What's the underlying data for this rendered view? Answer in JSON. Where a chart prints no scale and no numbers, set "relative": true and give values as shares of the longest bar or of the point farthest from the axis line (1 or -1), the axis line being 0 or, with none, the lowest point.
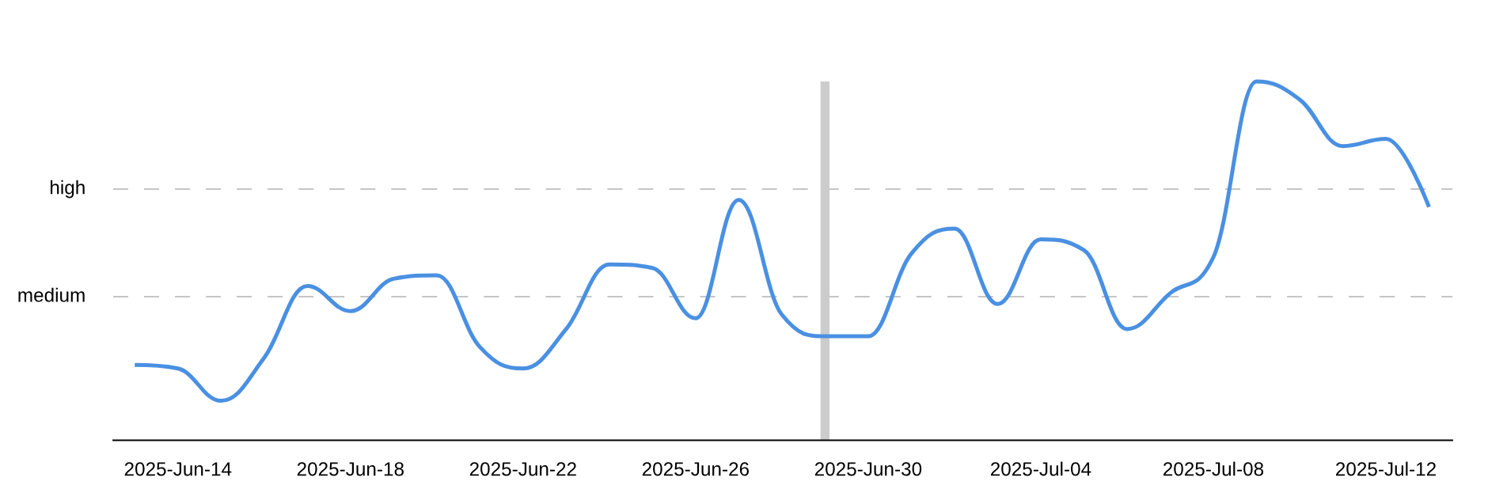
{
  "chart_data": {
    "type": "line",
    "relative": true,
    "tick_labels": "x",
    "line_style": "solid",
    "x": [
      "2025-06-13",
      "2025-06-14",
      "2025-06-15",
      "2025-06-16",
      "2025-06-17",
      "2025-06-18",
      "2025-06-19",
      "2025-06-20",
      "2025-06-21",
      "2025-06-22",
      "2025-06-23",
      "2025-06-24",
      "2025-06-25",
      "2025-06-26",
      "2025-06-27",
      "2025-06-28",
      "2025-06-29",
      "2025-06-30",
      "2025-07-01",
      "2025-07-02",
      "2025-07-03",
      "2025-07-04",
      "2025-07-05",
      "2025-07-06",
      "2025-07-07",
      "2025-07-08",
      "2025-07-09",
      "2025-07-10",
      "2025-07-11",
      "2025-07-12",
      "2025-07-13"
    ],
    "series": [
      {
        "color": "#4a90e2",
        "values": [
          0.21,
          0.2,
          0.11,
          0.23,
          0.43,
          0.36,
          0.45,
          0.46,
          0.26,
          0.2,
          0.31,
          0.49,
          0.48,
          0.34,
          0.67,
          0.35,
          0.29,
          0.29,
          0.52,
          0.59,
          0.38,
          0.56,
          0.53,
          0.31,
          0.41,
          0.51,
          1,
          0.95,
          0.82,
          0.84,
          0.65
        ]
      }
    ],
    "xlim": [
      "2025-06-12T12:00",
      "2025-07-13T13:00"
    ],
    "xticks": [
      {
        "value": "2025-06-14",
        "label": "2025-Jun-14"
      },
      {
        "value": "2025-06-18",
        "label": "2025-Jun-18"
      },
      {
        "value": "2025-06-22",
        "label": "2025-Jun-22"
      },
      {
        "value": "2025-06-26",
        "label": "2025-Jun-26"
      },
      {
        "value": "2025-06-30",
        "label": "2025-Jun-30"
      },
      {
        "value": "2025-07-04",
        "label": "2025-Jul-04"
      },
      {
        "value": "2025-07-08",
        "label": "2025-Jul-08"
      },
      {
        "value": "2025-07-12",
        "label": "2025-Jul-12"
      }
    ],
    "ref_lines": [
      {
        "axis": "y",
        "value": 0.4,
        "label": "medium",
        "color": "#b3b3b3",
        "line_style": "dashed"
      },
      {
        "axis": "y",
        "value": 0.7,
        "label": "high",
        "color": "#b3b3b3",
        "line_style": "dashed"
      },
      {
        "axis": "x",
        "value": "2025-06-29",
        "color": "#cccccc",
        "line_style": "solid"
      }
    ]
  }
}
